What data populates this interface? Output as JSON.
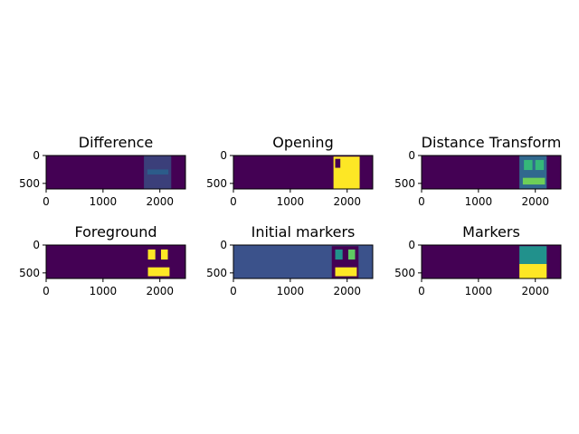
{
  "chart_data": [
    {
      "type": "heatmap",
      "title": "Difference",
      "xticks": [
        "0",
        "1000",
        "2000"
      ],
      "yticks": [
        "0",
        "500"
      ],
      "xlim": [
        0,
        2450
      ],
      "ylim": [
        600,
        0
      ],
      "background": "#440154",
      "regions": [
        {
          "x0": 1720,
          "x1": 2200,
          "y0": 0,
          "y1": 600,
          "color": "#3b3f7a"
        },
        {
          "x0": 1780,
          "x1": 2150,
          "y0": 250,
          "y1": 340,
          "color": "#2c5c8a"
        }
      ]
    },
    {
      "type": "heatmap",
      "title": "Opening",
      "xticks": [
        "0",
        "1000",
        "2000"
      ],
      "yticks": [
        "0",
        "500"
      ],
      "xlim": [
        0,
        2450
      ],
      "ylim": [
        600,
        0
      ],
      "background": "#440154",
      "regions": [
        {
          "x0": 1760,
          "x1": 2220,
          "y0": 20,
          "y1": 600,
          "color": "#fde725"
        },
        {
          "x0": 1790,
          "x1": 1880,
          "y0": 60,
          "y1": 220,
          "color": "#440154"
        }
      ]
    },
    {
      "type": "heatmap",
      "title": "Distance Transform",
      "xticks": [
        "0",
        "1000",
        "2000"
      ],
      "yticks": [
        "0",
        "500"
      ],
      "xlim": [
        0,
        2450
      ],
      "ylim": [
        600,
        0
      ],
      "background": "#440154",
      "regions": [
        {
          "x0": 1720,
          "x1": 2200,
          "y0": 0,
          "y1": 600,
          "color": "#31688e"
        },
        {
          "x0": 1800,
          "x1": 1950,
          "y0": 80,
          "y1": 260,
          "color": "#35b779"
        },
        {
          "x0": 2000,
          "x1": 2150,
          "y0": 80,
          "y1": 260,
          "color": "#35b779"
        },
        {
          "x0": 1780,
          "x1": 2170,
          "y0": 400,
          "y1": 520,
          "color": "#6ece58"
        }
      ]
    },
    {
      "type": "heatmap",
      "title": "Foreground",
      "xticks": [
        "0",
        "1000",
        "2000"
      ],
      "yticks": [
        "0",
        "500"
      ],
      "xlim": [
        0,
        2450
      ],
      "ylim": [
        600,
        0
      ],
      "background": "#440154",
      "regions": [
        {
          "x0": 1790,
          "x1": 1920,
          "y0": 80,
          "y1": 260,
          "color": "#fde725"
        },
        {
          "x0": 2020,
          "x1": 2140,
          "y0": 80,
          "y1": 260,
          "color": "#fde725"
        },
        {
          "x0": 1790,
          "x1": 2170,
          "y0": 400,
          "y1": 560,
          "color": "#fde725"
        }
      ]
    },
    {
      "type": "heatmap",
      "title": "Initial markers",
      "xticks": [
        "0",
        "1000",
        "2000"
      ],
      "yticks": [
        "0",
        "500"
      ],
      "xlim": [
        0,
        2450
      ],
      "ylim": [
        600,
        0
      ],
      "background": "#3b528b",
      "regions": [
        {
          "x0": 1730,
          "x1": 2200,
          "y0": 20,
          "y1": 600,
          "color": "#440154"
        },
        {
          "x0": 1790,
          "x1": 1920,
          "y0": 80,
          "y1": 260,
          "color": "#21918c"
        },
        {
          "x0": 2020,
          "x1": 2140,
          "y0": 80,
          "y1": 260,
          "color": "#5ec962"
        },
        {
          "x0": 1790,
          "x1": 2170,
          "y0": 400,
          "y1": 560,
          "color": "#fde725"
        }
      ]
    },
    {
      "type": "heatmap",
      "title": "Markers",
      "xticks": [
        "0",
        "1000",
        "2000"
      ],
      "yticks": [
        "0",
        "500"
      ],
      "xlim": [
        0,
        2450
      ],
      "ylim": [
        600,
        0
      ],
      "background": "#440154",
      "regions": [
        {
          "x0": 1720,
          "x1": 2200,
          "y0": 20,
          "y1": 340,
          "color": "#21918c"
        },
        {
          "x0": 1720,
          "x1": 2200,
          "y0": 340,
          "y1": 600,
          "color": "#fde725"
        }
      ]
    }
  ]
}
